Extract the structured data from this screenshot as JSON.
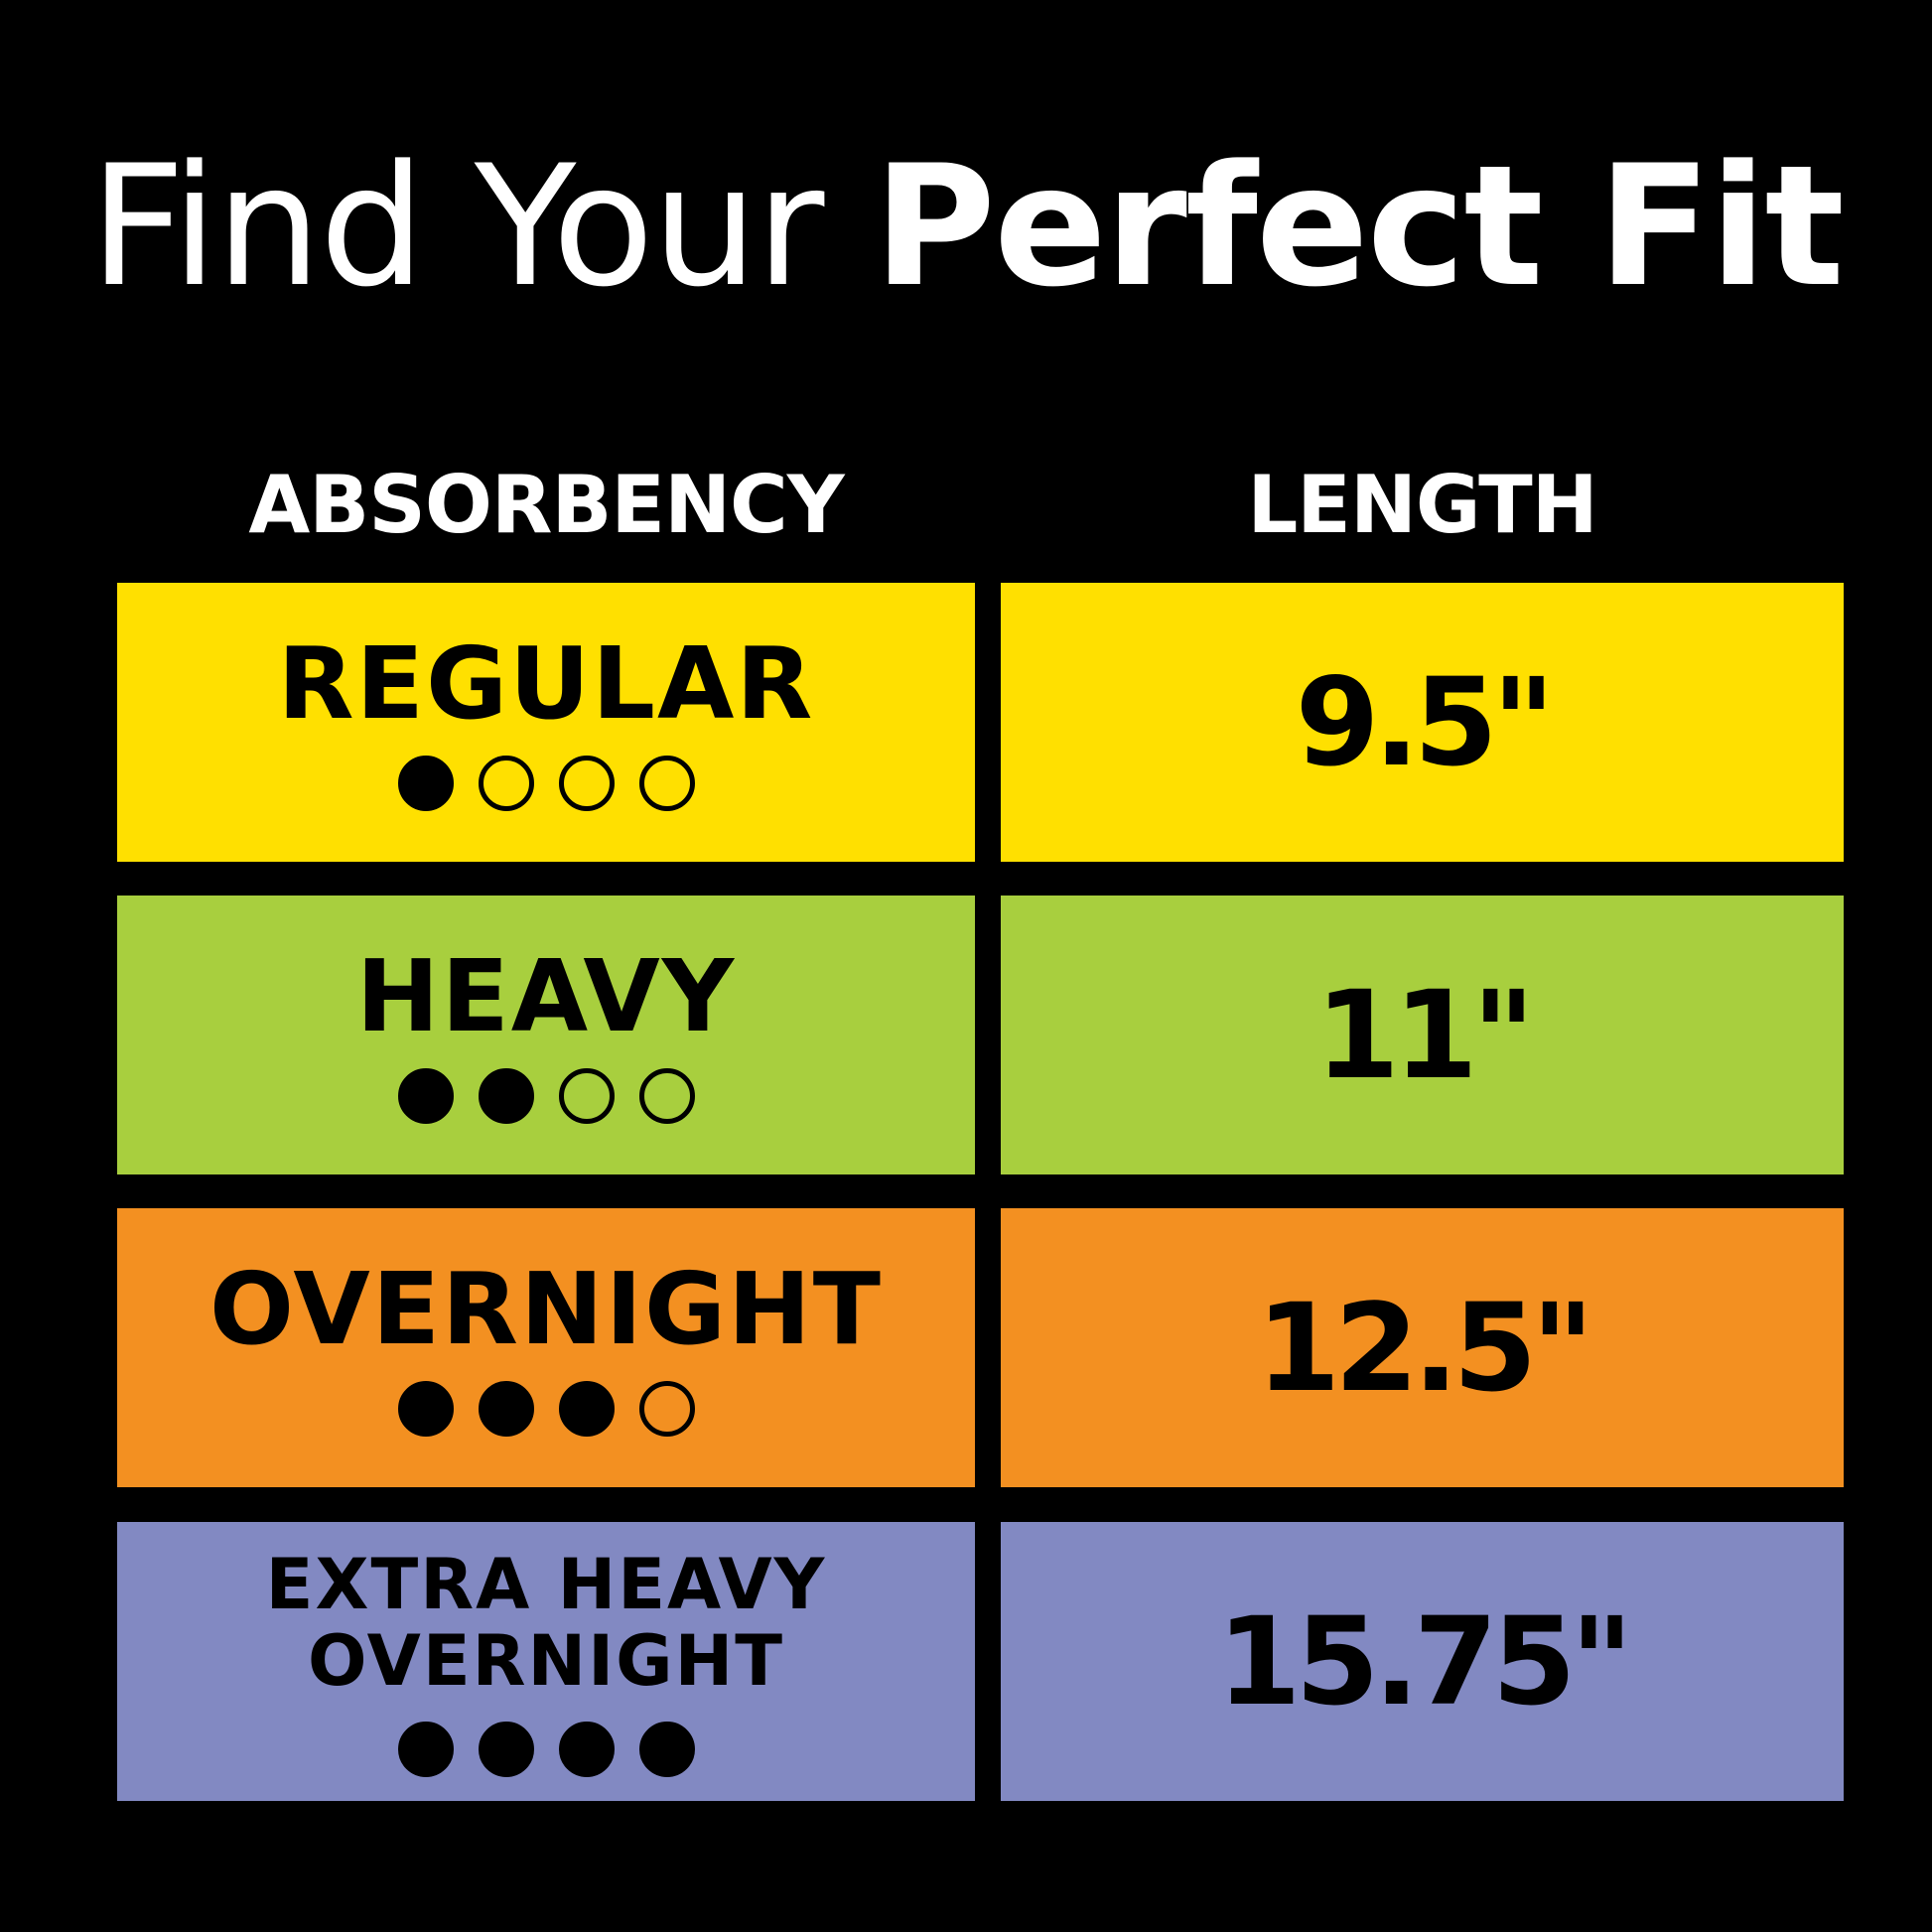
{
  "title": {
    "light": "Find Your",
    "bold": "Perfect Fit"
  },
  "headers": {
    "absorbency": "ABSORBENCY",
    "length": "LENGTH"
  },
  "rows": [
    {
      "label": "REGULAR",
      "label2": "",
      "level": 1,
      "max": 4,
      "length": "9.5\"",
      "color": "#FFE000"
    },
    {
      "label": "HEAVY",
      "label2": "",
      "level": 2,
      "max": 4,
      "length": "11\"",
      "color": "#A8CF3E"
    },
    {
      "label": "OVERNIGHT",
      "label2": "",
      "level": 3,
      "max": 4,
      "length": "12.5\"",
      "color": "#F39021"
    },
    {
      "label": "EXTRA HEAVY",
      "label2": "OVERNIGHT",
      "level": 4,
      "max": 4,
      "length": "15.75\"",
      "color": "#8289C2"
    }
  ]
}
